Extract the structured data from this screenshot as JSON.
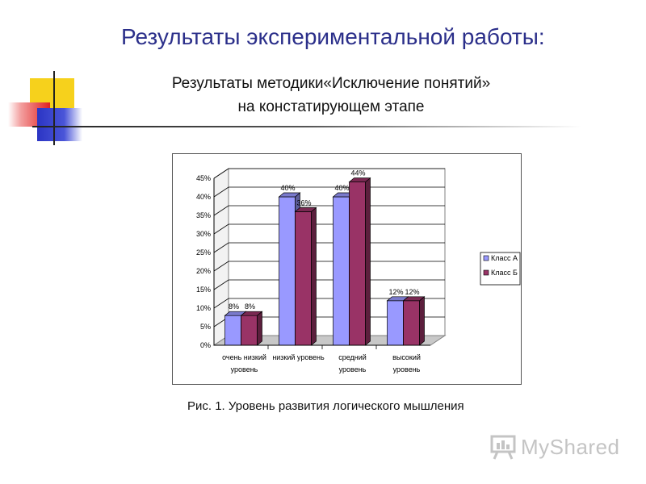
{
  "slide": {
    "title": "Результаты экспериментальной работы:",
    "subtitle_line1": "Результаты методики«Исключение понятий»",
    "subtitle_line2": "на констатирующем этапе",
    "caption": "Рис. 1. Уровень развития логического мышления",
    "watermark": "MyShared"
  },
  "colors": {
    "title": "#2b2f8a",
    "series_a": "#9999ff",
    "series_b": "#993366",
    "deco_yellow": "#f6d11c",
    "deco_red": "#e02020",
    "deco_blue": "#2b35c4"
  },
  "icons": {
    "watermark": "presentation-board-icon"
  },
  "chart_data": {
    "type": "bar",
    "style": "3d-clustered-column",
    "categories": [
      [
        "очень низкий",
        "уровень"
      ],
      [
        "низкий уровень"
      ],
      [
        "средний",
        "уровень"
      ],
      [
        "высокий",
        "уровень"
      ]
    ],
    "series": [
      {
        "name": "Класс А",
        "values": [
          8,
          40,
          40,
          12
        ],
        "labels": [
          "8%",
          "40%",
          "40%",
          "12%"
        ]
      },
      {
        "name": "Класс Б",
        "values": [
          8,
          36,
          44,
          12
        ],
        "labels": [
          "8%",
          "36%",
          "44%",
          "12%"
        ]
      }
    ],
    "y_ticks": [
      "0%",
      "5%",
      "10%",
      "15%",
      "20%",
      "25%",
      "30%",
      "35%",
      "40%",
      "45%"
    ],
    "ylim": [
      0,
      45
    ],
    "grid": true,
    "legend": "right"
  }
}
